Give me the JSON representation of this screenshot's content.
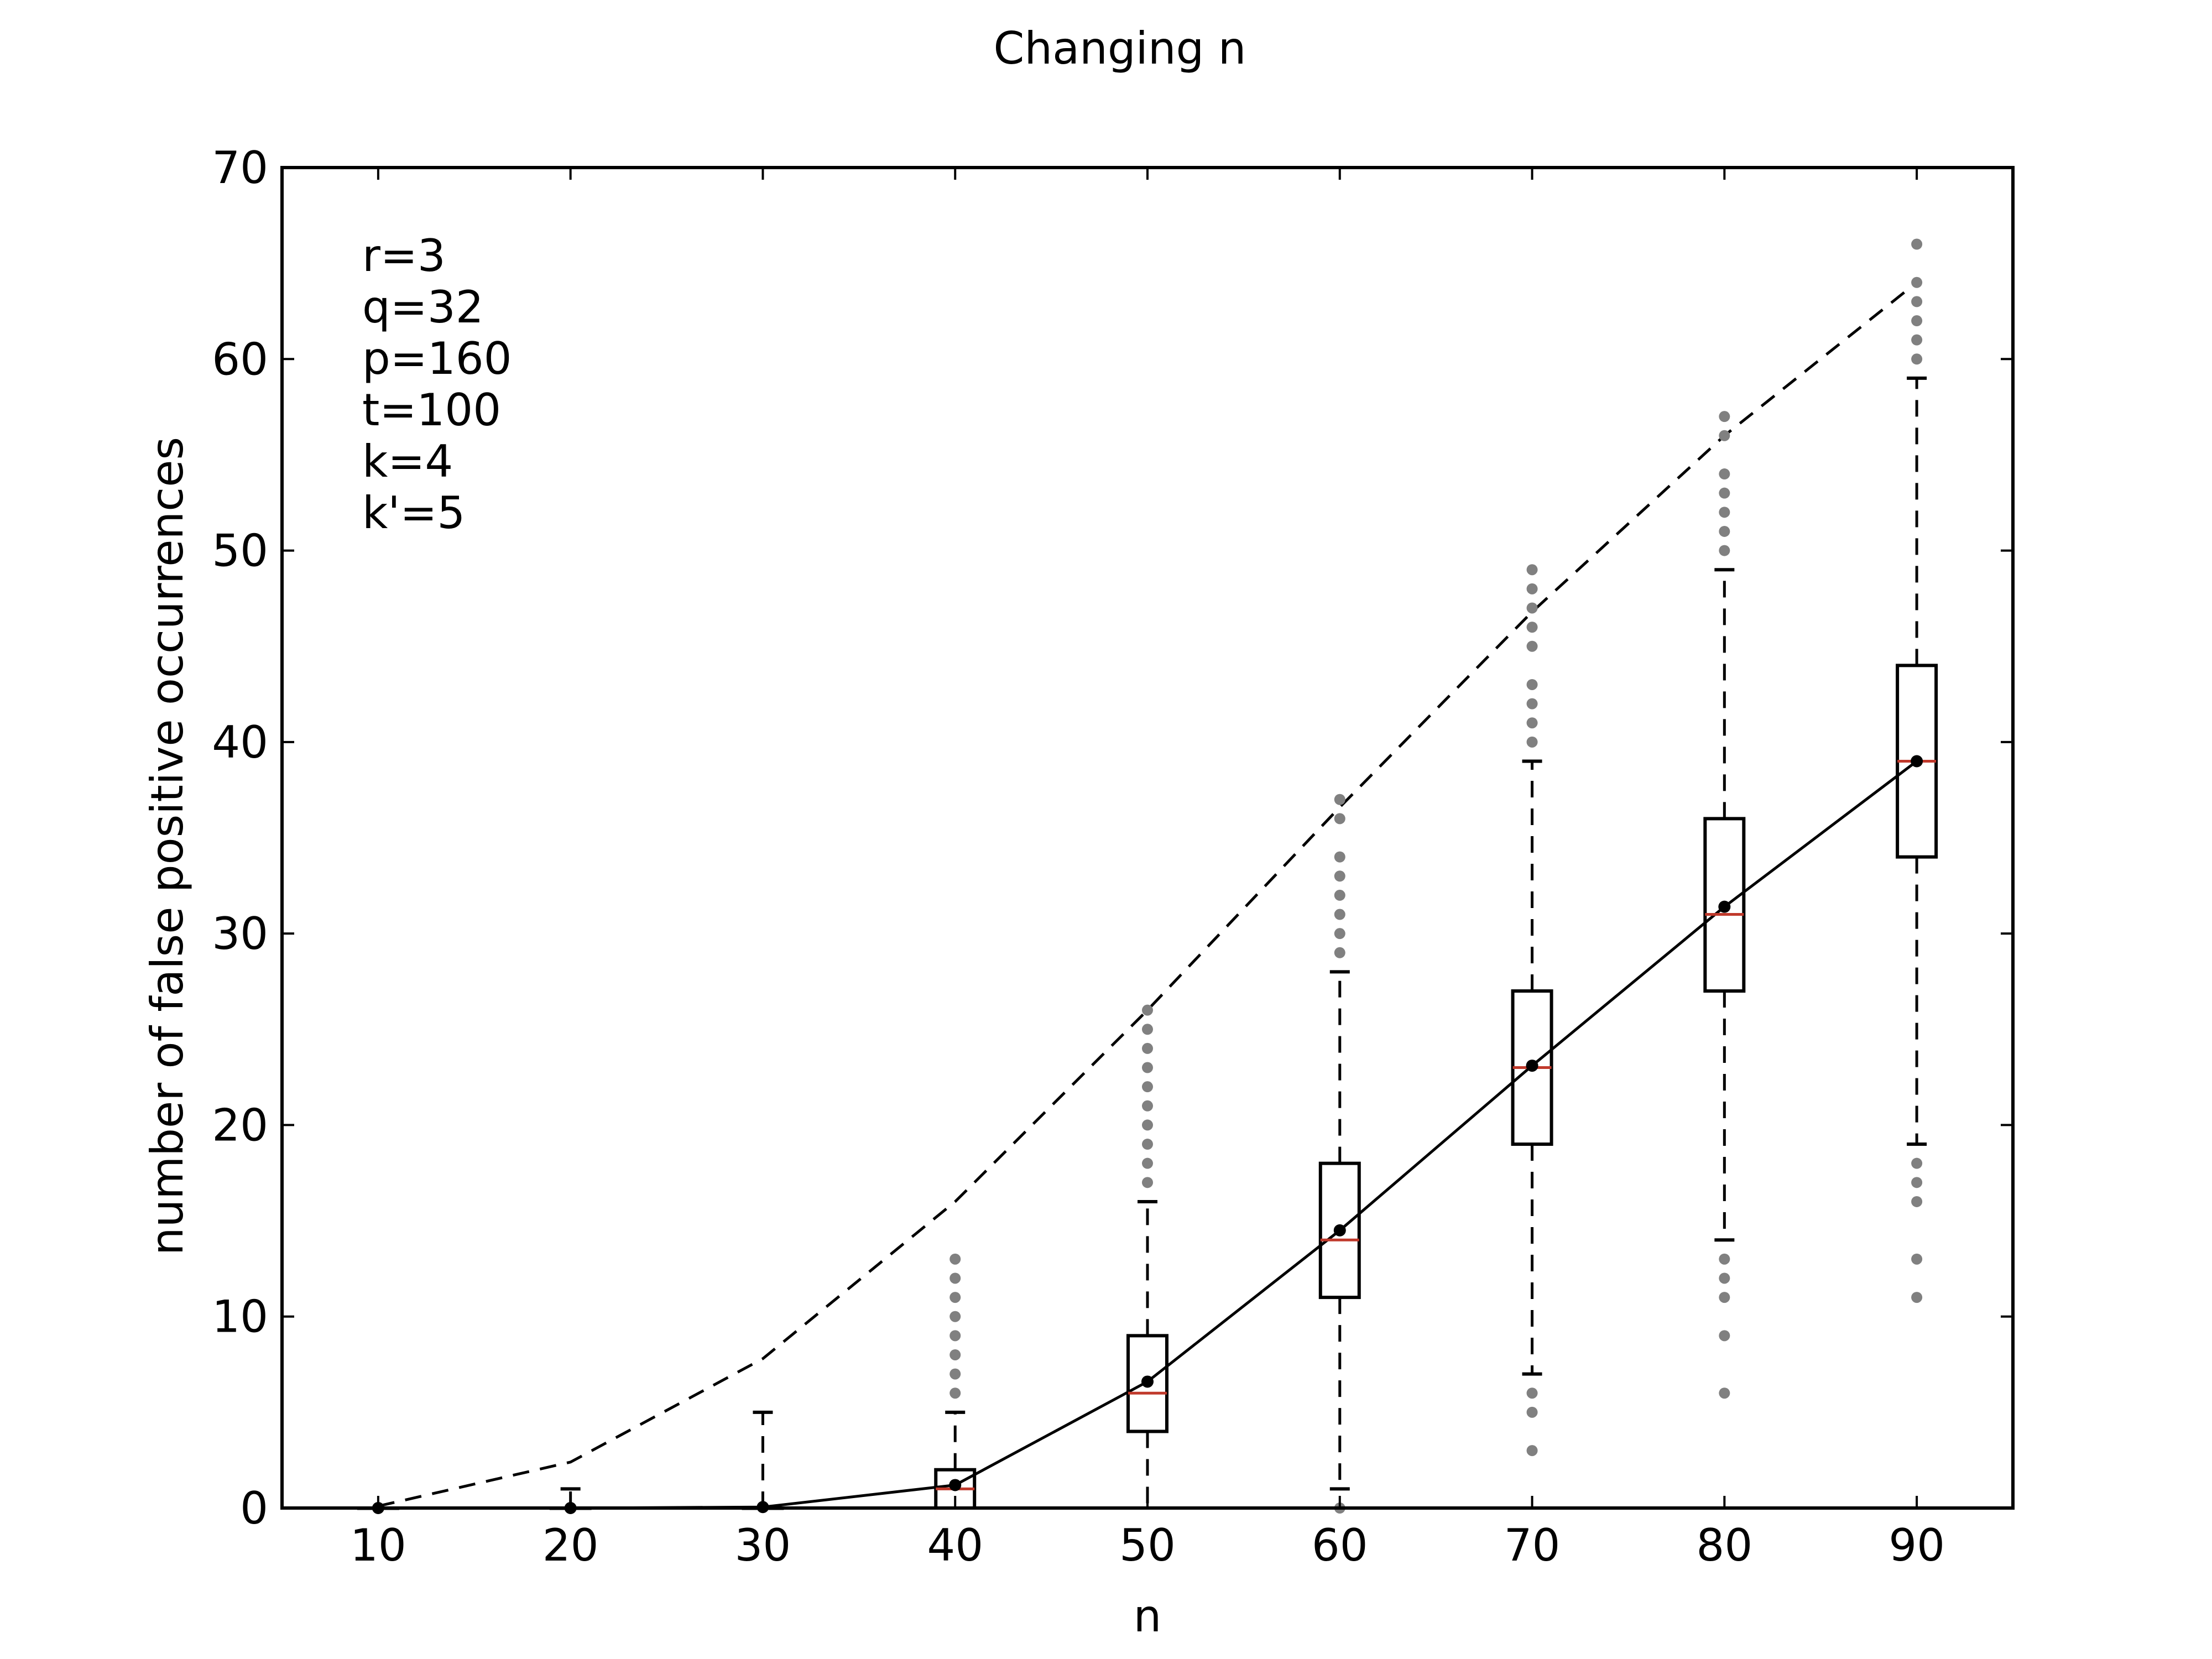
{
  "chart_data": {
    "type": "box",
    "title": "Changing n",
    "xlabel": "n",
    "ylabel": "number of false positive occurrences",
    "xlim": [
      5,
      95
    ],
    "ylim": [
      0,
      70
    ],
    "xticks": [
      10,
      20,
      30,
      40,
      50,
      60,
      70,
      80,
      90
    ],
    "yticks": [
      0,
      10,
      20,
      30,
      40,
      50,
      60,
      70
    ],
    "annotation": [
      "r=3",
      "q=32",
      "p=160",
      "t=100",
      "k=4",
      "k'=5"
    ],
    "colors": {
      "median": "#c0392b",
      "outlier": "#808080",
      "line": "#000000"
    },
    "boxes": [
      {
        "x": 10,
        "whisker_low": 0,
        "q1": 0,
        "median": 0,
        "q3": 0,
        "whisker_high": 0,
        "outliers": []
      },
      {
        "x": 20,
        "whisker_low": 0,
        "q1": 0,
        "median": 0,
        "q3": 0,
        "whisker_high": 1,
        "outliers": []
      },
      {
        "x": 30,
        "whisker_low": 0,
        "q1": 0,
        "median": 0,
        "q3": 0,
        "whisker_high": 5,
        "outliers": []
      },
      {
        "x": 40,
        "whisker_low": 0,
        "q1": 0,
        "median": 1,
        "q3": 2,
        "whisker_high": 5,
        "outliers": [
          6,
          7,
          8,
          9,
          10,
          11,
          12,
          13
        ]
      },
      {
        "x": 50,
        "whisker_low": 0,
        "q1": 4,
        "median": 6,
        "q3": 9,
        "whisker_high": 16,
        "outliers": [
          17,
          18,
          19,
          20,
          21,
          22,
          23,
          24,
          25,
          26
        ]
      },
      {
        "x": 60,
        "whisker_low": 1,
        "q1": 11,
        "median": 14,
        "q3": 18,
        "whisker_high": 28,
        "outliers": [
          0,
          29,
          30,
          31,
          32,
          33,
          34,
          36,
          37
        ]
      },
      {
        "x": 70,
        "whisker_low": 7,
        "q1": 19,
        "median": 23,
        "q3": 27,
        "whisker_high": 39,
        "outliers": [
          3,
          5,
          6,
          40,
          41,
          42,
          43,
          45,
          46,
          47,
          48,
          49
        ]
      },
      {
        "x": 80,
        "whisker_low": 14,
        "q1": 27,
        "median": 31,
        "q3": 36,
        "whisker_high": 49,
        "outliers": [
          6,
          9,
          11,
          12,
          13,
          50,
          51,
          52,
          53,
          54,
          56,
          57
        ]
      },
      {
        "x": 90,
        "whisker_low": 19,
        "q1": 34,
        "median": 39,
        "q3": 44,
        "whisker_high": 59,
        "outliers": [
          11,
          13,
          16,
          17,
          18,
          60,
          61,
          62,
          63,
          64,
          66
        ]
      }
    ],
    "series": [
      {
        "style": "solid",
        "x": [
          10,
          20,
          30,
          40,
          50,
          60,
          70,
          80,
          90
        ],
        "y": [
          0,
          0,
          0.05,
          1.2,
          6.6,
          14.5,
          23.1,
          31.4,
          39.0
        ],
        "markers": true
      },
      {
        "style": "dashed",
        "x": [
          10,
          20,
          30,
          40,
          50,
          60,
          70,
          80,
          90
        ],
        "y": [
          0.1,
          2.4,
          7.8,
          16.0,
          26.0,
          36.6,
          46.8,
          56.0,
          64.0
        ],
        "markers": false
      }
    ]
  }
}
